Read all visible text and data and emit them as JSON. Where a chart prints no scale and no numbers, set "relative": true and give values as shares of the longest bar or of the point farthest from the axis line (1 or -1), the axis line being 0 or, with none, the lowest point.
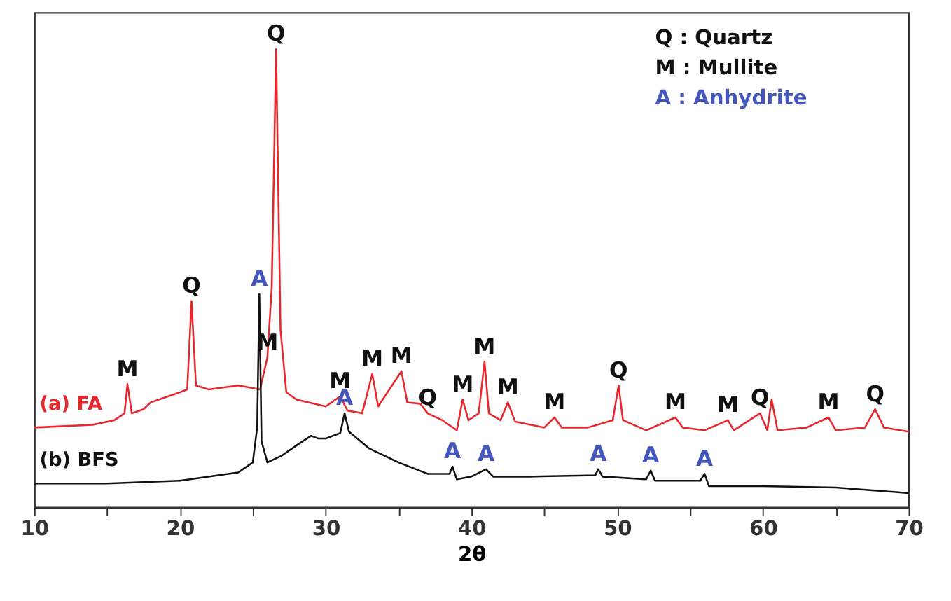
{
  "chart_data": {
    "type": "line",
    "relative": true,
    "xlabel": "2θ",
    "xlim": [
      10,
      70
    ],
    "xticks": [
      10,
      {
        "value": 15,
        "label": null
      },
      20,
      {
        "value": 25,
        "label": null
      },
      30,
      {
        "value": 35,
        "label": null
      },
      40,
      {
        "value": 45,
        "label": null
      },
      50,
      {
        "value": 55,
        "label": null
      },
      60,
      {
        "value": 65,
        "label": null
      },
      70
    ],
    "grid": false,
    "legend": false,
    "tick_labels": "x",
    "marker": "none",
    "line_style": "solid",
    "series": [
      {
        "name": "(a) FA",
        "color": "#e8262c",
        "x": [
          10,
          14,
          15.5,
          16.2,
          16.4,
          16.7,
          17.5,
          18,
          20,
          20.5,
          20.8,
          21.1,
          22,
          24,
          25.5,
          26,
          26.3,
          26.6,
          26.9,
          27.3,
          28,
          30,
          31,
          31.5,
          32.5,
          33.2,
          33.6,
          35.2,
          35.6,
          36.5,
          37,
          38,
          39,
          39.4,
          39.8,
          40.5,
          40.9,
          41.2,
          42,
          42.5,
          43,
          45,
          45.7,
          46.2,
          48,
          49.7,
          50.1,
          50.4,
          52,
          54,
          54.5,
          56,
          57.6,
          58,
          59.8,
          60.3,
          60.6,
          61,
          63,
          64.5,
          65,
          67,
          67.7,
          68.3,
          70
        ],
        "values": [
          0.174,
          0.18,
          0.19,
          0.205,
          0.269,
          0.205,
          0.214,
          0.229,
          0.251,
          0.257,
          0.45,
          0.266,
          0.257,
          0.266,
          0.257,
          0.327,
          0.48,
          1,
          0.388,
          0.251,
          0.235,
          0.22,
          0.242,
          0.211,
          0.205,
          0.291,
          0.22,
          0.297,
          0.229,
          0.226,
          0.205,
          0.19,
          0.168,
          0.235,
          0.19,
          0.205,
          0.318,
          0.205,
          0.19,
          0.229,
          0.187,
          0.174,
          0.196,
          0.174,
          0.174,
          0.19,
          0.266,
          0.19,
          0.168,
          0.196,
          0.174,
          0.168,
          0.19,
          0.168,
          0.205,
          0.168,
          0.235,
          0.168,
          0.174,
          0.196,
          0.168,
          0.174,
          0.214,
          0.174,
          0.165
        ]
      },
      {
        "name": "(b) BFS",
        "color": "#111111",
        "x": [
          10,
          15,
          20,
          24,
          25,
          25.3,
          25.45,
          25.6,
          26,
          27,
          28,
          29,
          29.5,
          30,
          31,
          31.3,
          31.6,
          33,
          35,
          37,
          38.5,
          38.7,
          39,
          40,
          41,
          41.5,
          44,
          48.5,
          48.7,
          49,
          52,
          52.3,
          52.6,
          55.7,
          56,
          56.3,
          60,
          65,
          70
        ],
        "values": [
          0.052,
          0.052,
          0.058,
          0.076,
          0.098,
          0.174,
          0.465,
          0.144,
          0.098,
          0.113,
          0.135,
          0.156,
          0.15,
          0.15,
          0.162,
          0.205,
          0.165,
          0.128,
          0.098,
          0.073,
          0.073,
          0.089,
          0.061,
          0.067,
          0.083,
          0.067,
          0.067,
          0.07,
          0.083,
          0.067,
          0.061,
          0.08,
          0.058,
          0.058,
          0.073,
          0.046,
          0.046,
          0.043,
          0.031
        ]
      }
    ],
    "annotations": [
      "Q : Quartz",
      "M : Mullite",
      "A : Anhydrite",
      {
        "text": "M",
        "x": 16.4,
        "y": 0.269
      },
      {
        "text": "Q",
        "x": 20.8,
        "y": 0.45
      },
      {
        "text": "Q",
        "x": 26.6,
        "y": 1
      },
      {
        "text": "A",
        "x": 25.45,
        "y": 0.465
      },
      {
        "text": "M",
        "x": 26,
        "y": 0.327
      },
      {
        "text": "M",
        "x": 31,
        "y": 0.242
      },
      {
        "text": "M",
        "x": 33.2,
        "y": 0.291
      },
      {
        "text": "M",
        "x": 35.2,
        "y": 0.297
      },
      {
        "text": "Q",
        "x": 37,
        "y": 0.205
      },
      {
        "text": "M",
        "x": 39.4,
        "y": 0.235
      },
      {
        "text": "A",
        "x": 31.3,
        "y": 0.205
      },
      {
        "text": "A",
        "x": 38.7,
        "y": 0.089
      },
      {
        "text": "M",
        "x": 40.9,
        "y": 0.318
      },
      {
        "text": "M",
        "x": 42.5,
        "y": 0.229
      },
      {
        "text": "M",
        "x": 45.7,
        "y": 0.196
      },
      {
        "text": "Q",
        "x": 50.1,
        "y": 0.266
      },
      {
        "text": "M",
        "x": 54,
        "y": 0.196
      },
      {
        "text": "M",
        "x": 57.6,
        "y": 0.19
      },
      {
        "text": "Q",
        "x": 59.8,
        "y": 0.205
      },
      {
        "text": "M",
        "x": 64.5,
        "y": 0.196
      },
      {
        "text": "Q",
        "x": 67.7,
        "y": 0.214
      },
      {
        "text": "A",
        "x": 41,
        "y": 0.083
      },
      {
        "text": "A",
        "x": 48.7,
        "y": 0.083
      },
      {
        "text": "A",
        "x": 52.3,
        "y": 0.08
      },
      {
        "text": "A",
        "x": 56,
        "y": 0.073
      }
    ]
  }
}
